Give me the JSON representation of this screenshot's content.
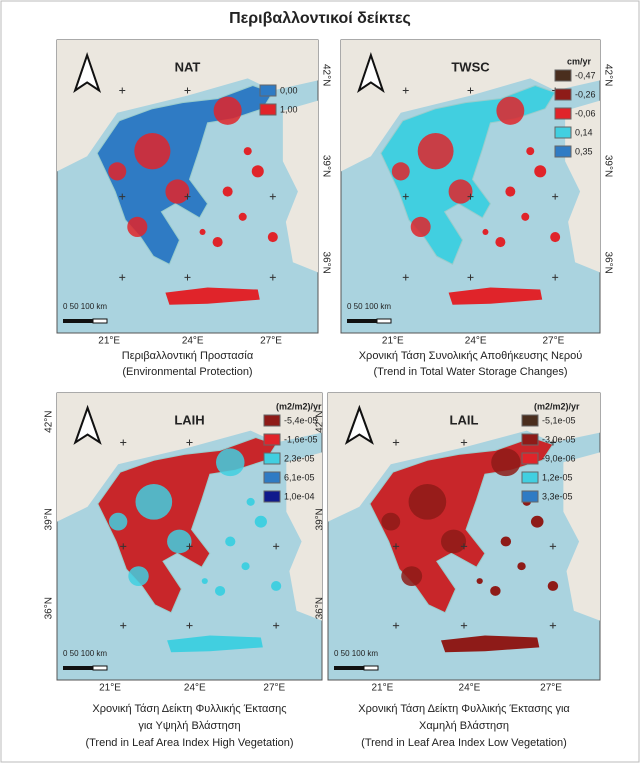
{
  "title": "Περιβαλλοντικοί δείκτες",
  "panels": [
    {
      "map_title": "NAT",
      "legend": [
        {
          "label": "0,00",
          "color": "#2f7bc4"
        },
        {
          "label": "1,00",
          "color": "#e0242a"
        }
      ],
      "lat_labels": [
        "42°N",
        "39°N",
        "36°N"
      ],
      "lon_labels": [
        "21°E",
        "24°E",
        "27°E"
      ],
      "scale": "0   50  100 km",
      "caption": [
        "Περιβαλλοντική Προστασία",
        "(Environmental Protection)"
      ]
    },
    {
      "map_title": "TWSC",
      "legend_title": "cm/yr",
      "legend": [
        {
          "label": "-0,47",
          "color": "#4a2e1e"
        },
        {
          "label": "-0,26",
          "color": "#8e1b18"
        },
        {
          "label": "-0,06",
          "color": "#e0242a"
        },
        {
          "label": "0,14",
          "color": "#41cfe0"
        },
        {
          "label": "0,35",
          "color": "#2f7bc4"
        }
      ],
      "lat_labels": [
        "42°N",
        "39°N",
        "36°N"
      ],
      "lon_labels": [
        "21°E",
        "24°E",
        "27°E"
      ],
      "scale": "0   50  100 km",
      "caption": [
        "Χρονική Τάση Συνολικής Αποθήκευσης Νερού",
        "(Trend in Total Water Storage Changes)"
      ]
    },
    {
      "map_title": "LAIH",
      "legend_title": "(m2/m2)/yr",
      "legend": [
        {
          "label": "-5,4e-05",
          "color": "#8e1b18"
        },
        {
          "label": "-1,6e-05",
          "color": "#e0242a"
        },
        {
          "label": "2,3e-05",
          "color": "#41cfe0"
        },
        {
          "label": "6,1e-05",
          "color": "#2f7bc4"
        },
        {
          "label": "1,0e-04",
          "color": "#101a8c"
        }
      ],
      "lat_labels": [
        "42°N",
        "39°N",
        "36°N"
      ],
      "lon_labels": [
        "21°E",
        "24°E",
        "27°E"
      ],
      "scale": "0   50  100 km",
      "caption": [
        "Χρονική Τάση Δείκτη Φυλλικής Έκτασης",
        "για Υψηλή Βλάστηση",
        "(Trend in Leaf Area Index High Vegetation)"
      ]
    },
    {
      "map_title": "LAIL",
      "legend_title": "(m2/m2)/yr",
      "legend": [
        {
          "label": "-5,1e-05",
          "color": "#4a2e1e"
        },
        {
          "label": "-3,0e-05",
          "color": "#8e1b18"
        },
        {
          "label": "-9,0e-06",
          "color": "#e0242a"
        },
        {
          "label": "1,2e-05",
          "color": "#41cfe0"
        },
        {
          "label": "3,3e-05",
          "color": "#2f7bc4"
        }
      ],
      "lat_labels": [
        "42°N",
        "39°N",
        "36°N"
      ],
      "lon_labels": [
        "21°E",
        "24°E",
        "27°E"
      ],
      "scale": "0   50  100 km",
      "caption": [
        "Χρονική Τάση Δείκτη Φυλλικής Έκτασης για",
        "Χαμηλή Βλάστηση",
        "(Trend in Leaf Area Index Low Vegetation)"
      ]
    }
  ]
}
